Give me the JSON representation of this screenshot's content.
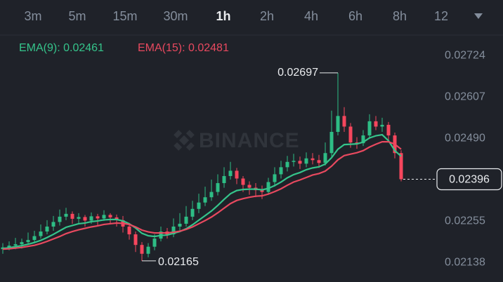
{
  "tabs": [
    "3m",
    "5m",
    "15m",
    "30m",
    "1h",
    "2h",
    "4h",
    "6h",
    "8h",
    "12"
  ],
  "selected_tab": 4,
  "chart_data": {
    "type": "candlestick",
    "watermark": "BINANCE",
    "up_color": "#2ebd85",
    "down_color": "#f6465d",
    "ylim": [
      0.02119,
      0.02804
    ],
    "yticks": [
      0.02724,
      0.02607,
      {
        "value": 0.0249,
        "label": "0.02490"
      },
      0.02255,
      0.02138
    ],
    "grid": true,
    "candles": {
      "open": [
        0.02198,
        0.02203,
        0.02208,
        0.02212,
        0.02218,
        0.02224,
        0.02235,
        0.02248,
        0.02262,
        0.02275,
        0.0229,
        0.02298,
        0.02284,
        0.02289,
        0.02279,
        0.02291,
        0.02285,
        0.02295,
        0.02288,
        0.0228,
        0.02262,
        0.0224,
        0.0221,
        0.02185,
        0.02205,
        0.02228,
        0.02248,
        0.0224,
        0.02262,
        0.0227,
        0.0229,
        0.02312,
        0.0233,
        0.02345,
        0.0236,
        0.02385,
        0.02405,
        0.0242,
        0.02398,
        0.0238,
        0.02372,
        0.02365,
        0.0236,
        0.02388,
        0.0241,
        0.0243,
        0.02445,
        0.02448,
        0.0244,
        0.02455,
        0.0245,
        0.02442,
        0.0247,
        0.0253,
        0.02575,
        0.02545,
        0.025,
        0.02498,
        0.0252,
        0.0256,
        0.02545,
        0.0255,
        0.0252,
        0.0247
      ],
      "high": [
        0.02215,
        0.0222,
        0.0223,
        0.02228,
        0.02245,
        0.0225,
        0.02268,
        0.0228,
        0.02292,
        0.0231,
        0.02315,
        0.02305,
        0.023,
        0.02295,
        0.02302,
        0.02298,
        0.02308,
        0.023,
        0.02296,
        0.02292,
        0.0227,
        0.02248,
        0.02218,
        0.02215,
        0.0224,
        0.02262,
        0.02258,
        0.02285,
        0.023,
        0.0232,
        0.02335,
        0.02355,
        0.02375,
        0.02395,
        0.0241,
        0.0243,
        0.02445,
        0.02428,
        0.02405,
        0.0239,
        0.02385,
        0.02378,
        0.024,
        0.0243,
        0.02448,
        0.02462,
        0.02468,
        0.0246,
        0.02472,
        0.0247,
        0.02465,
        0.025,
        0.0259,
        0.02697,
        0.026,
        0.02555,
        0.02515,
        0.02535,
        0.0258,
        0.02575,
        0.0257,
        0.02558,
        0.02528,
        0.02478
      ],
      "low": [
        0.02185,
        0.02195,
        0.02198,
        0.022,
        0.0221,
        0.02215,
        0.02228,
        0.0224,
        0.0225,
        0.02265,
        0.0228,
        0.0227,
        0.02272,
        0.02262,
        0.0227,
        0.02265,
        0.02278,
        0.02272,
        0.02262,
        0.02245,
        0.02225,
        0.0219,
        0.02165,
        0.02175,
        0.02195,
        0.0222,
        0.02228,
        0.02232,
        0.0225,
        0.02262,
        0.0228,
        0.023,
        0.0232,
        0.02335,
        0.0235,
        0.02372,
        0.02395,
        0.02382,
        0.0236,
        0.02352,
        0.02345,
        0.0234,
        0.02352,
        0.02375,
        0.02398,
        0.02418,
        0.02432,
        0.02425,
        0.0243,
        0.02438,
        0.02428,
        0.02435,
        0.0246,
        0.0252,
        0.0253,
        0.02485,
        0.02482,
        0.0249,
        0.0251,
        0.02535,
        0.0253,
        0.02505,
        0.02455,
        0.0239
      ],
      "close": [
        0.02203,
        0.02208,
        0.02212,
        0.02218,
        0.02224,
        0.02235,
        0.02248,
        0.02262,
        0.02275,
        0.0229,
        0.02298,
        0.02284,
        0.02289,
        0.02279,
        0.02291,
        0.02285,
        0.02295,
        0.02288,
        0.0228,
        0.02262,
        0.0224,
        0.0221,
        0.02185,
        0.02205,
        0.02228,
        0.02248,
        0.0224,
        0.02262,
        0.0227,
        0.0229,
        0.02312,
        0.0233,
        0.02345,
        0.0236,
        0.02385,
        0.02405,
        0.0242,
        0.02398,
        0.0238,
        0.02372,
        0.02365,
        0.0236,
        0.02388,
        0.0241,
        0.0243,
        0.02445,
        0.02448,
        0.0244,
        0.02455,
        0.0245,
        0.02442,
        0.0247,
        0.0253,
        0.02575,
        0.02545,
        0.025,
        0.02498,
        0.0252,
        0.0256,
        0.02545,
        0.0255,
        0.0252,
        0.0247,
        0.02396
      ]
    },
    "series": [
      {
        "name": "EMA(9): 0.02461",
        "color": "#35c48b",
        "values": [
          0.022,
          0.02202,
          0.02205,
          0.02208,
          0.02212,
          0.02217,
          0.02223,
          0.02231,
          0.0224,
          0.0225,
          0.0226,
          0.02265,
          0.0227,
          0.02272,
          0.02276,
          0.02278,
          0.02281,
          0.02282,
          0.02282,
          0.02278,
          0.0227,
          0.02258,
          0.02243,
          0.02236,
          0.02234,
          0.02237,
          0.02238,
          0.02243,
          0.02248,
          0.02256,
          0.02267,
          0.0228,
          0.02293,
          0.02306,
          0.02322,
          0.02339,
          0.02355,
          0.02364,
          0.02367,
          0.02368,
          0.02368,
          0.02366,
          0.0237,
          0.02378,
          0.02388,
          0.024,
          0.02409,
          0.02415,
          0.02423,
          0.02428,
          0.02431,
          0.02439,
          0.02457,
          0.02481,
          0.02494,
          0.02495,
          0.02496,
          0.02501,
          0.02513,
          0.02519,
          0.02522,
          0.02505,
          0.02477,
          0.02461
        ]
      },
      {
        "name": "EMA(15): 0.02481",
        "color": "#e8495f",
        "values": [
          0.02198,
          0.02199,
          0.02201,
          0.02203,
          0.02206,
          0.02209,
          0.02214,
          0.0222,
          0.02227,
          0.02234,
          0.02242,
          0.02248,
          0.02253,
          0.02257,
          0.02261,
          0.02264,
          0.02268,
          0.0227,
          0.02272,
          0.02271,
          0.02268,
          0.02261,
          0.02252,
          0.02247,
          0.02244,
          0.02244,
          0.02244,
          0.02246,
          0.02249,
          0.02254,
          0.02261,
          0.0227,
          0.02279,
          0.02289,
          0.02301,
          0.02314,
          0.02327,
          0.02336,
          0.02341,
          0.02345,
          0.02348,
          0.02349,
          0.02354,
          0.02361,
          0.02369,
          0.02379,
          0.02388,
          0.02394,
          0.02401,
          0.02408,
          0.02412,
          0.02419,
          0.02433,
          0.02451,
          0.02463,
          0.02467,
          0.02471,
          0.02477,
          0.02487,
          0.02495,
          0.02502,
          0.02502,
          0.02495,
          0.02481
        ]
      }
    ]
  }
}
